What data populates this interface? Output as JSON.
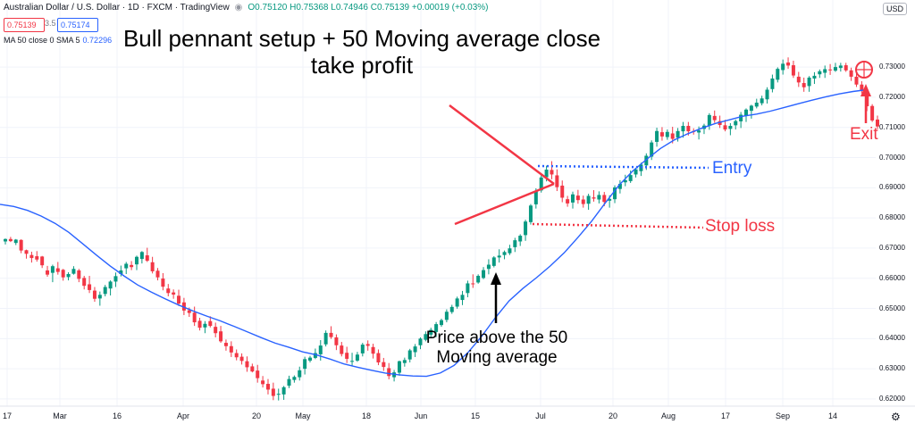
{
  "header": {
    "symbol": "Australian Dollar / U.S. Dollar · 1D · FXCM · TradingView",
    "ohlc": "O0.75120 H0.75368 L0.74946 C0.75139 +0.00019 (+0.03%)",
    "eye_icon": "eye-icon"
  },
  "prices": {
    "bid": "0.75139",
    "spread": "3.5",
    "ask": "0.75174"
  },
  "ma_legend": {
    "label": "MA 50 close 0 SMA 5",
    "value": "0.72296"
  },
  "currency": "USD",
  "annotations": {
    "title": "Bull pennant setup + 50 Moving average close take profit",
    "entry": "Entry",
    "stop_loss": "Stop loss",
    "exit": "Exit",
    "price_above": "Price above the 50 Moving average"
  },
  "colors": {
    "up": "#089981",
    "down": "#f23645",
    "ma": "#2962ff",
    "annotation_red": "#f23645",
    "annotation_blue": "#2962ff"
  },
  "chart_data": {
    "type": "candlestick",
    "y_ticks": [
      "0.73000",
      "0.72000",
      "0.71000",
      "0.70000",
      "0.69000",
      "0.68000",
      "0.67000",
      "0.66000",
      "0.65000",
      "0.64000",
      "0.63000",
      "0.62000"
    ],
    "ylim": [
      0.6185,
      0.7395
    ],
    "x_ticks": [
      "17",
      "Mar",
      "16",
      "Apr",
      "20",
      "May",
      "18",
      "Jun",
      "15",
      "Jul",
      "20",
      "Aug",
      "17",
      "Sep",
      "14"
    ],
    "ma_series": [
      0.6845,
      0.6838,
      0.6825,
      0.6806,
      0.6782,
      0.6752,
      0.6715,
      0.6677,
      0.6641,
      0.6608,
      0.6578,
      0.6554,
      0.6532,
      0.6511,
      0.6492,
      0.6475,
      0.6459,
      0.6441,
      0.6422,
      0.6403,
      0.6385,
      0.6371,
      0.6356,
      0.6346,
      0.6332,
      0.6316,
      0.6305,
      0.6295,
      0.6286,
      0.628,
      0.6276,
      0.6275,
      0.6286,
      0.6311,
      0.6353,
      0.6407,
      0.6469,
      0.6525,
      0.6566,
      0.6602,
      0.6641,
      0.6684,
      0.6735,
      0.6789,
      0.685,
      0.6909,
      0.6956,
      0.6994,
      0.703,
      0.7058,
      0.7079,
      0.7097,
      0.7113,
      0.7125,
      0.7137,
      0.7144,
      0.7154,
      0.7166,
      0.7178,
      0.719,
      0.7201,
      0.7211,
      0.7219,
      0.7225
    ],
    "candles": [
      [
        0.6722,
        0.6732,
        0.6712,
        0.673
      ],
      [
        0.673,
        0.6737,
        0.672,
        0.6723
      ],
      [
        0.6717,
        0.673,
        0.671,
        0.6728
      ],
      [
        0.6727,
        0.6729,
        0.6683,
        0.6692
      ],
      [
        0.6693,
        0.6695,
        0.6665,
        0.6681
      ],
      [
        0.6677,
        0.6688,
        0.6652,
        0.6667
      ],
      [
        0.6673,
        0.669,
        0.6655,
        0.6662
      ],
      [
        0.6672,
        0.6674,
        0.6634,
        0.6643
      ],
      [
        0.6626,
        0.6641,
        0.6605,
        0.6612
      ],
      [
        0.6618,
        0.6645,
        0.6587,
        0.664
      ],
      [
        0.6633,
        0.6654,
        0.6612,
        0.6621
      ],
      [
        0.6628,
        0.6631,
        0.6592,
        0.6603
      ],
      [
        0.6604,
        0.662,
        0.6593,
        0.6614
      ],
      [
        0.6615,
        0.664,
        0.6612,
        0.6631
      ],
      [
        0.6626,
        0.6631,
        0.6587,
        0.6598
      ],
      [
        0.6601,
        0.6608,
        0.6563,
        0.6575
      ],
      [
        0.658,
        0.6608,
        0.6551,
        0.6561
      ],
      [
        0.6559,
        0.6571,
        0.6522,
        0.6532
      ],
      [
        0.6533,
        0.6556,
        0.6509,
        0.6545
      ],
      [
        0.6548,
        0.6578,
        0.654,
        0.6571
      ],
      [
        0.6566,
        0.6593,
        0.6543,
        0.6589
      ],
      [
        0.6589,
        0.6619,
        0.6571,
        0.6607
      ],
      [
        0.6614,
        0.6642,
        0.6606,
        0.6626
      ],
      [
        0.6633,
        0.6654,
        0.6614,
        0.6648
      ],
      [
        0.6644,
        0.6657,
        0.6627,
        0.6637
      ],
      [
        0.6646,
        0.6675,
        0.6627,
        0.6671
      ],
      [
        0.6664,
        0.669,
        0.6649,
        0.6687
      ],
      [
        0.6676,
        0.6701,
        0.6654,
        0.6658
      ],
      [
        0.6653,
        0.6671,
        0.6616,
        0.6623
      ],
      [
        0.6625,
        0.6634,
        0.6593,
        0.6603
      ],
      [
        0.6599,
        0.6617,
        0.656,
        0.6572
      ],
      [
        0.6566,
        0.6581,
        0.654,
        0.6551
      ],
      [
        0.6553,
        0.6563,
        0.6532,
        0.6546
      ],
      [
        0.6542,
        0.6562,
        0.6508,
        0.6516
      ],
      [
        0.652,
        0.6535,
        0.6478,
        0.6493
      ],
      [
        0.6494,
        0.6503,
        0.6472,
        0.6485
      ],
      [
        0.6486,
        0.6506,
        0.6442,
        0.6454
      ],
      [
        0.6459,
        0.6469,
        0.6427,
        0.6436
      ],
      [
        0.6437,
        0.6458,
        0.6418,
        0.6449
      ],
      [
        0.6458,
        0.6474,
        0.6437,
        0.6442
      ],
      [
        0.6439,
        0.6453,
        0.6404,
        0.6418
      ],
      [
        0.6424,
        0.6442,
        0.6386,
        0.6391
      ],
      [
        0.6386,
        0.6397,
        0.636,
        0.6375
      ],
      [
        0.6375,
        0.6391,
        0.6339,
        0.6354
      ],
      [
        0.6352,
        0.6364,
        0.6328,
        0.6338
      ],
      [
        0.634,
        0.6351,
        0.6314,
        0.6326
      ],
      [
        0.6325,
        0.6341,
        0.629,
        0.6305
      ],
      [
        0.6308,
        0.6317,
        0.6288,
        0.6291
      ],
      [
        0.6294,
        0.6313,
        0.6254,
        0.6269
      ],
      [
        0.6261,
        0.6276,
        0.6238,
        0.6249
      ],
      [
        0.625,
        0.6266,
        0.6215,
        0.6231
      ],
      [
        0.6234,
        0.6254,
        0.6196,
        0.621
      ],
      [
        0.6214,
        0.6234,
        0.6195,
        0.6217
      ],
      [
        0.6215,
        0.6243,
        0.6197,
        0.6239
      ],
      [
        0.6244,
        0.6277,
        0.6236,
        0.6266
      ],
      [
        0.6263,
        0.6278,
        0.6254,
        0.6273
      ],
      [
        0.6272,
        0.6307,
        0.6261,
        0.6295
      ],
      [
        0.63,
        0.634,
        0.6281,
        0.6332
      ],
      [
        0.6327,
        0.6343,
        0.6321,
        0.6337
      ],
      [
        0.6336,
        0.6367,
        0.6332,
        0.6352
      ],
      [
        0.6348,
        0.6395,
        0.6327,
        0.6377
      ],
      [
        0.6381,
        0.6427,
        0.6374,
        0.6419
      ],
      [
        0.6419,
        0.6441,
        0.6399,
        0.6405
      ],
      [
        0.6404,
        0.6414,
        0.6362,
        0.6378
      ],
      [
        0.6377,
        0.6389,
        0.6341,
        0.6349
      ],
      [
        0.6353,
        0.6373,
        0.6319,
        0.6333
      ],
      [
        0.6325,
        0.6353,
        0.6309,
        0.6326
      ],
      [
        0.6327,
        0.6356,
        0.6323,
        0.6347
      ],
      [
        0.6351,
        0.6386,
        0.6341,
        0.638
      ],
      [
        0.6382,
        0.6394,
        0.636,
        0.6376
      ],
      [
        0.6372,
        0.6383,
        0.6334,
        0.635
      ],
      [
        0.6352,
        0.6364,
        0.6312,
        0.6321
      ],
      [
        0.6322,
        0.6336,
        0.6293,
        0.6306
      ],
      [
        0.6302,
        0.6319,
        0.6265,
        0.6276
      ],
      [
        0.6272,
        0.6296,
        0.6258,
        0.6288
      ],
      [
        0.6287,
        0.6327,
        0.6277,
        0.6325
      ],
      [
        0.6319,
        0.6337,
        0.6307,
        0.6329
      ],
      [
        0.6331,
        0.6366,
        0.6321,
        0.6361
      ],
      [
        0.6355,
        0.6382,
        0.6339,
        0.6374
      ],
      [
        0.6378,
        0.6404,
        0.6365,
        0.64
      ],
      [
        0.6396,
        0.6424,
        0.6391,
        0.6415
      ],
      [
        0.6413,
        0.6436,
        0.6403,
        0.6429
      ],
      [
        0.6422,
        0.6455,
        0.6405,
        0.6448
      ],
      [
        0.6445,
        0.6466,
        0.6439,
        0.6461
      ],
      [
        0.6462,
        0.6497,
        0.6454,
        0.6489
      ],
      [
        0.6488,
        0.6512,
        0.6482,
        0.6505
      ],
      [
        0.6506,
        0.6539,
        0.6499,
        0.6533
      ],
      [
        0.6528,
        0.6558,
        0.6511,
        0.6545
      ],
      [
        0.6551,
        0.6592,
        0.6537,
        0.6583
      ],
      [
        0.6583,
        0.6613,
        0.6568,
        0.6581
      ],
      [
        0.6586,
        0.6613,
        0.6582,
        0.6608
      ],
      [
        0.6601,
        0.6637,
        0.6597,
        0.6627
      ],
      [
        0.6631,
        0.6663,
        0.6613,
        0.6645
      ],
      [
        0.6641,
        0.6673,
        0.6636,
        0.6669
      ],
      [
        0.6669,
        0.6696,
        0.6652,
        0.6675
      ],
      [
        0.6677,
        0.6692,
        0.6663,
        0.6687
      ],
      [
        0.6683,
        0.6711,
        0.6677,
        0.6699
      ],
      [
        0.6703,
        0.6734,
        0.6687,
        0.6726
      ],
      [
        0.6722,
        0.6746,
        0.6707,
        0.6741
      ],
      [
        0.6743,
        0.6794,
        0.6724,
        0.6788
      ],
      [
        0.6786,
        0.6846,
        0.6778,
        0.6841
      ],
      [
        0.6845,
        0.6898,
        0.6831,
        0.6889
      ],
      [
        0.6891,
        0.6942,
        0.6884,
        0.6934
      ],
      [
        0.6935,
        0.6973,
        0.6921,
        0.696
      ],
      [
        0.6959,
        0.6988,
        0.6928,
        0.6944
      ],
      [
        0.6941,
        0.6961,
        0.6889,
        0.6902
      ],
      [
        0.6907,
        0.6924,
        0.6852,
        0.6867
      ],
      [
        0.6862,
        0.6873,
        0.6837,
        0.6848
      ],
      [
        0.6851,
        0.6887,
        0.6831,
        0.6878
      ],
      [
        0.6874,
        0.6893,
        0.6847,
        0.6859
      ],
      [
        0.6861,
        0.6874,
        0.6834,
        0.6846
      ],
      [
        0.6847,
        0.688,
        0.6827,
        0.6873
      ],
      [
        0.6868,
        0.6892,
        0.6854,
        0.6864
      ],
      [
        0.6861,
        0.6888,
        0.6848,
        0.6876
      ],
      [
        0.6876,
        0.6886,
        0.6839,
        0.6853
      ],
      [
        0.6857,
        0.6875,
        0.6834,
        0.6863
      ],
      [
        0.6862,
        0.6908,
        0.6849,
        0.6901
      ],
      [
        0.6896,
        0.6925,
        0.6881,
        0.6913
      ],
      [
        0.6918,
        0.6943,
        0.6905,
        0.6925
      ],
      [
        0.6922,
        0.6957,
        0.6916,
        0.6942
      ],
      [
        0.6944,
        0.6966,
        0.6934,
        0.6961
      ],
      [
        0.6955,
        0.6983,
        0.6939,
        0.6977
      ],
      [
        0.6974,
        0.7014,
        0.6959,
        0.7006
      ],
      [
        0.7003,
        0.7057,
        0.6992,
        0.705
      ],
      [
        0.7052,
        0.7099,
        0.7036,
        0.7088
      ],
      [
        0.7084,
        0.7101,
        0.7056,
        0.707
      ],
      [
        0.7068,
        0.7093,
        0.7059,
        0.7085
      ],
      [
        0.708,
        0.7102,
        0.7047,
        0.7062
      ],
      [
        0.7066,
        0.7098,
        0.7053,
        0.7088
      ],
      [
        0.7087,
        0.7118,
        0.7066,
        0.7105
      ],
      [
        0.7105,
        0.7118,
        0.7073,
        0.7087
      ],
      [
        0.7088,
        0.7097,
        0.7076,
        0.7086
      ],
      [
        0.7083,
        0.7103,
        0.706,
        0.709
      ],
      [
        0.7095,
        0.7112,
        0.7078,
        0.7106
      ],
      [
        0.7106,
        0.7147,
        0.7092,
        0.7141
      ],
      [
        0.7138,
        0.7156,
        0.7115,
        0.7124
      ],
      [
        0.7121,
        0.7139,
        0.7098,
        0.7108
      ],
      [
        0.7107,
        0.7125,
        0.7087,
        0.7093
      ],
      [
        0.7095,
        0.7114,
        0.7074,
        0.7105
      ],
      [
        0.7107,
        0.7126,
        0.7093,
        0.7121
      ],
      [
        0.712,
        0.7151,
        0.7098,
        0.7142
      ],
      [
        0.7138,
        0.7163,
        0.7118,
        0.7159
      ],
      [
        0.7155,
        0.7175,
        0.7129,
        0.7172
      ],
      [
        0.7169,
        0.7195,
        0.7163,
        0.7182
      ],
      [
        0.718,
        0.7205,
        0.7173,
        0.7196
      ],
      [
        0.7193,
        0.7233,
        0.7179,
        0.7225
      ],
      [
        0.7227,
        0.7275,
        0.7216,
        0.7262
      ],
      [
        0.7258,
        0.7299,
        0.7249,
        0.7294
      ],
      [
        0.729,
        0.7325,
        0.7275,
        0.7311
      ],
      [
        0.7315,
        0.7332,
        0.7294,
        0.7305
      ],
      [
        0.7306,
        0.7321,
        0.7264,
        0.7272
      ],
      [
        0.7268,
        0.7284,
        0.7234,
        0.7249
      ],
      [
        0.7247,
        0.7265,
        0.7218,
        0.7233
      ],
      [
        0.7237,
        0.727,
        0.7218,
        0.7265
      ],
      [
        0.7262,
        0.7283,
        0.7244,
        0.7271
      ],
      [
        0.7276,
        0.7292,
        0.7264,
        0.7286
      ],
      [
        0.7281,
        0.7305,
        0.7264,
        0.7293
      ],
      [
        0.7292,
        0.731,
        0.7274,
        0.729
      ],
      [
        0.7288,
        0.7314,
        0.7284,
        0.73
      ],
      [
        0.7297,
        0.7314,
        0.7285,
        0.7305
      ],
      [
        0.7306,
        0.7314,
        0.7284,
        0.7289
      ],
      [
        0.7289,
        0.7298,
        0.7254,
        0.7268
      ],
      [
        0.7268,
        0.728,
        0.7234,
        0.7242
      ],
      [
        0.7242,
        0.7253,
        0.7213,
        0.7221
      ],
      [
        0.7221,
        0.7224,
        0.7154,
        0.717
      ],
      [
        0.7171,
        0.7177,
        0.7118,
        0.7123
      ],
      [
        0.7126,
        0.7139,
        0.7094,
        0.7103
      ]
    ]
  }
}
